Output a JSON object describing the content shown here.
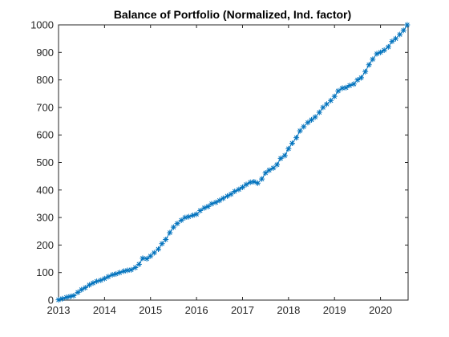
{
  "chart_data": {
    "type": "line",
    "title": "Balance of Portfolio (Normalized, Ind. factor)",
    "xlabel": "",
    "ylabel": "",
    "xlim": [
      2013,
      2020.6
    ],
    "ylim": [
      0,
      1000
    ],
    "xticks": [
      2013,
      2014,
      2015,
      2016,
      2017,
      2018,
      2019,
      2020
    ],
    "yticks": [
      0,
      100,
      200,
      300,
      400,
      500,
      600,
      700,
      800,
      900,
      1000
    ],
    "grid": false,
    "marker": "asterisk",
    "line_color": "#0072BD",
    "series": [
      {
        "x": [
          2013.0,
          2013.08,
          2013.17,
          2013.25,
          2013.33,
          2013.42,
          2013.5,
          2013.58,
          2013.67,
          2013.75,
          2013.83,
          2013.92,
          2014.0,
          2014.08,
          2014.17,
          2014.25,
          2014.33,
          2014.42,
          2014.5,
          2014.58,
          2014.67,
          2014.75,
          2014.83,
          2014.92,
          2015.0,
          2015.08,
          2015.17,
          2015.25,
          2015.33,
          2015.42,
          2015.5,
          2015.58,
          2015.67,
          2015.75,
          2015.83,
          2015.92,
          2016.0,
          2016.08,
          2016.17,
          2016.25,
          2016.33,
          2016.42,
          2016.5,
          2016.58,
          2016.67,
          2016.75,
          2016.83,
          2016.92,
          2017.0,
          2017.08,
          2017.17,
          2017.25,
          2017.33,
          2017.42,
          2017.5,
          2017.58,
          2017.67,
          2017.75,
          2017.83,
          2017.92,
          2018.0,
          2018.08,
          2018.17,
          2018.25,
          2018.33,
          2018.42,
          2018.5,
          2018.58,
          2018.67,
          2018.75,
          2018.83,
          2018.92,
          2019.0,
          2019.08,
          2019.17,
          2019.25,
          2019.33,
          2019.42,
          2019.5,
          2019.58,
          2019.67,
          2019.75,
          2019.83,
          2019.92,
          2020.0,
          2020.08,
          2020.17,
          2020.25,
          2020.33,
          2020.42,
          2020.5,
          2020.58
        ],
        "y": [
          1,
          5,
          10,
          13,
          16,
          28,
          38,
          45,
          55,
          62,
          68,
          72,
          78,
          85,
          92,
          95,
          100,
          105,
          108,
          110,
          118,
          130,
          152,
          150,
          160,
          172,
          185,
          205,
          220,
          245,
          265,
          278,
          290,
          300,
          303,
          308,
          312,
          325,
          335,
          340,
          350,
          355,
          362,
          370,
          378,
          385,
          395,
          402,
          410,
          420,
          428,
          430,
          425,
          440,
          462,
          472,
          480,
          492,
          515,
          525,
          550,
          570,
          590,
          615,
          630,
          645,
          655,
          665,
          682,
          700,
          712,
          725,
          740,
          760,
          770,
          772,
          780,
          785,
          800,
          808,
          830,
          855,
          875,
          895,
          900,
          908,
          920,
          940,
          950,
          965,
          980,
          1000
        ]
      }
    ]
  }
}
